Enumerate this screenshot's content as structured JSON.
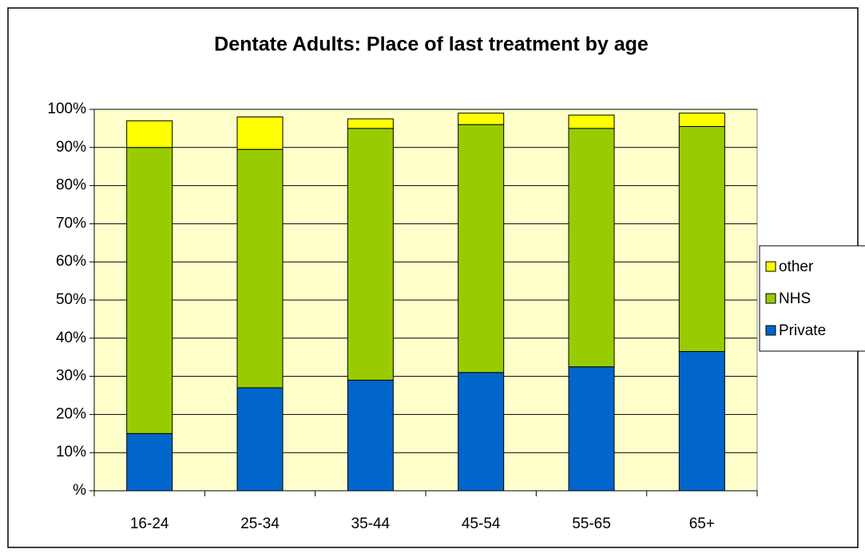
{
  "chart_data": {
    "type": "stacked_bar",
    "title": "Dentate Adults: Place of last treatment by age",
    "categories": [
      "16-24",
      "25-34",
      "35-44",
      "45-54",
      "55-65",
      "65+"
    ],
    "series": [
      {
        "name": "Private",
        "color": "#0066cc",
        "values": [
          15,
          27,
          29,
          31,
          32.5,
          36.5
        ]
      },
      {
        "name": "NHS",
        "color": "#99cc00",
        "values": [
          75,
          62.5,
          66,
          65,
          62.5,
          59
        ]
      },
      {
        "name": "other",
        "color": "#ffff00",
        "values": [
          7,
          8.5,
          2.5,
          3,
          3.5,
          3.5
        ]
      }
    ],
    "ylim": [
      0,
      100
    ],
    "yticks": [
      {
        "value": 0,
        "label": "%"
      },
      {
        "value": 10,
        "label": "10%"
      },
      {
        "value": 20,
        "label": "20%"
      },
      {
        "value": 30,
        "label": "30%"
      },
      {
        "value": 40,
        "label": "40%"
      },
      {
        "value": 50,
        "label": "50%"
      },
      {
        "value": 60,
        "label": "60%"
      },
      {
        "value": 70,
        "label": "70%"
      },
      {
        "value": 80,
        "label": "80%"
      },
      {
        "value": 90,
        "label": "90%"
      },
      {
        "value": 100,
        "label": "100%"
      }
    ],
    "grid": true,
    "legend": "right",
    "plot_background": "#ffffcc"
  }
}
